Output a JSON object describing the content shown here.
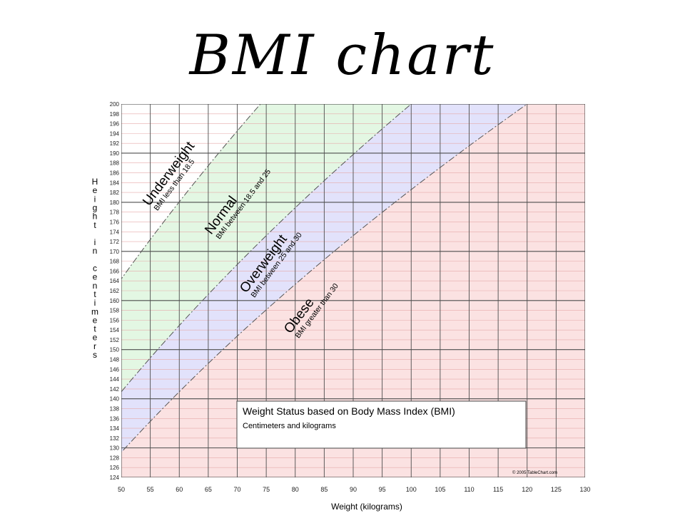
{
  "slide": {
    "title": "BMI chart"
  },
  "colors": {
    "underweight": "#ffffff",
    "normal": "#e3f7e3",
    "overweight": "#e2e2fb",
    "obese": "#fbe2e2",
    "grid_minor": "#e6aaaa",
    "grid_major": "#4d4d4d",
    "boundary": "#555555"
  },
  "chart_data": {
    "type": "area",
    "title": "Weight Status based on Body Mass Index (BMI)",
    "subtitle": "Centimeters and kilograms",
    "xlabel": "Weight (kilograms)",
    "ylabel": "Height in centimeters",
    "xlim": [
      50,
      130
    ],
    "ylim": [
      124,
      200
    ],
    "x_ticks": [
      50,
      55,
      60,
      65,
      70,
      75,
      80,
      85,
      90,
      95,
      100,
      105,
      110,
      115,
      120,
      125,
      130
    ],
    "y_ticks": [
      124,
      126,
      128,
      130,
      132,
      134,
      136,
      138,
      140,
      142,
      144,
      146,
      148,
      150,
      152,
      154,
      156,
      158,
      160,
      162,
      164,
      166,
      168,
      170,
      172,
      174,
      176,
      178,
      180,
      182,
      184,
      186,
      188,
      190,
      192,
      194,
      196,
      198,
      200
    ],
    "y_major_ticks": [
      130,
      140,
      150,
      160,
      170,
      180,
      190,
      200
    ],
    "grid": true,
    "series": [
      {
        "bmi": 18.5
      },
      {
        "bmi": 25
      },
      {
        "bmi": 30
      }
    ],
    "zones": [
      {
        "key": "underweight",
        "name": "Underweight",
        "description": "BMI less than 18.5"
      },
      {
        "key": "normal",
        "name": "Normal",
        "description": "BMI between 18.5 and 25"
      },
      {
        "key": "overweight",
        "name": "Overweight",
        "description": "BMI between 25 and 30"
      },
      {
        "key": "obese",
        "name": "Obese",
        "description": "BMI greater than 30"
      }
    ],
    "credit": "© 2005 TableChart.com"
  }
}
